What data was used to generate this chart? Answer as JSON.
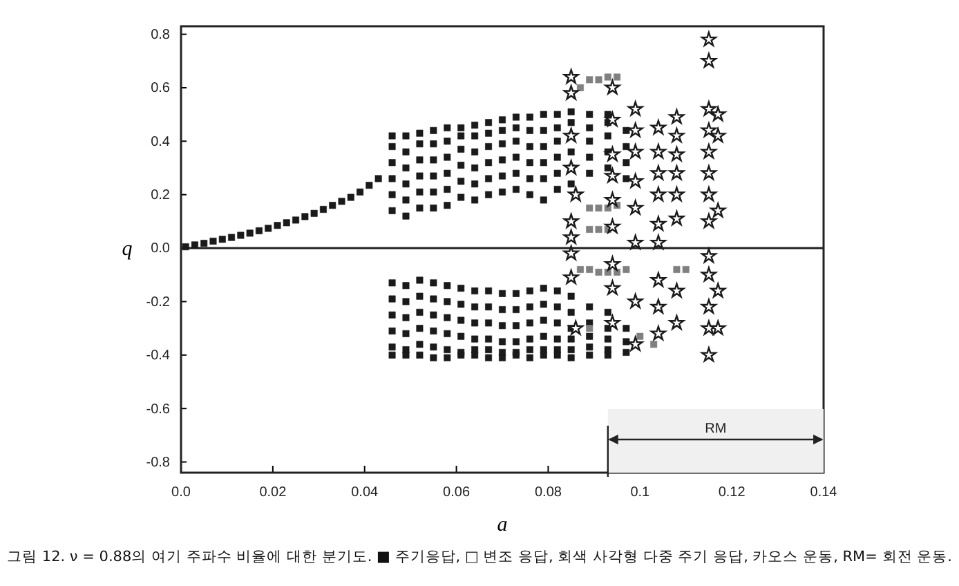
{
  "chart_data": {
    "type": "scatter",
    "xlabel": "a",
    "ylabel": "q",
    "xlim": [
      0,
      0.14
    ],
    "ylim": [
      -0.84,
      0.83
    ],
    "xticks": [
      {
        "value": 0,
        "label": "0.0"
      },
      0.02,
      0.04,
      0.06,
      0.08,
      0.1,
      0.12,
      0.14
    ],
    "yticks": [
      -0.8,
      -0.6,
      -0.4,
      -0.2,
      {
        "value": 0,
        "label": "0.0"
      },
      0.2,
      0.4,
      0.6,
      0.8
    ],
    "grid": false,
    "ref_lines": [
      {
        "axis": "y",
        "value": 0
      }
    ],
    "bands": [
      {
        "axis": "x",
        "from": 0.093,
        "to": 0.14,
        "label": "RM",
        "color": "#f0f0f0"
      }
    ],
    "annotations": [
      "그림 12. ν = 0.88의 여기 주파수 비율에 대한 분기도. ■ 주기응답, □ 변조 응답, 회색 사각형 다중 주기 응답, 카오스 운동, RM= 회전 운동."
    ],
    "series": [
      {
        "color": "#1a1a1a",
        "marker": "square",
        "x": [
          0.001,
          0.003,
          0.005,
          0.007,
          0.009,
          0.011,
          0.013,
          0.015,
          0.017,
          0.019,
          0.021,
          0.023,
          0.025,
          0.027,
          0.029,
          0.031,
          0.033,
          0.035,
          0.037,
          0.039,
          0.041,
          0.043,
          0.046,
          0.046,
          0.046,
          0.046,
          0.046,
          0.046,
          0.046,
          0.046,
          0.046,
          0.046,
          0.046,
          0.046,
          0.049,
          0.049,
          0.049,
          0.049,
          0.049,
          0.049,
          0.049,
          0.049,
          0.049,
          0.049,
          0.049,
          0.049,
          0.052,
          0.052,
          0.052,
          0.052,
          0.052,
          0.052,
          0.052,
          0.052,
          0.052,
          0.052,
          0.052,
          0.052,
          0.055,
          0.055,
          0.055,
          0.055,
          0.055,
          0.055,
          0.055,
          0.055,
          0.055,
          0.055,
          0.055,
          0.055,
          0.058,
          0.058,
          0.058,
          0.058,
          0.058,
          0.058,
          0.058,
          0.058,
          0.058,
          0.058,
          0.058,
          0.058,
          0.061,
          0.061,
          0.061,
          0.061,
          0.061,
          0.061,
          0.061,
          0.061,
          0.061,
          0.061,
          0.061,
          0.061,
          0.064,
          0.064,
          0.064,
          0.064,
          0.064,
          0.064,
          0.064,
          0.064,
          0.064,
          0.064,
          0.064,
          0.064,
          0.067,
          0.067,
          0.067,
          0.067,
          0.067,
          0.067,
          0.067,
          0.067,
          0.067,
          0.067,
          0.067,
          0.067,
          0.07,
          0.07,
          0.07,
          0.07,
          0.07,
          0.07,
          0.07,
          0.07,
          0.07,
          0.07,
          0.07,
          0.07,
          0.073,
          0.073,
          0.073,
          0.073,
          0.073,
          0.073,
          0.073,
          0.073,
          0.073,
          0.073,
          0.073,
          0.073,
          0.076,
          0.076,
          0.076,
          0.076,
          0.076,
          0.076,
          0.076,
          0.076,
          0.076,
          0.076,
          0.076,
          0.076,
          0.079,
          0.079,
          0.079,
          0.079,
          0.079,
          0.079,
          0.079,
          0.079,
          0.079,
          0.079,
          0.079,
          0.079,
          0.082,
          0.082,
          0.082,
          0.082,
          0.082,
          0.082,
          0.082,
          0.082,
          0.082,
          0.082,
          0.082,
          0.082,
          0.085,
          0.085,
          0.085,
          0.085,
          0.085,
          0.085,
          0.085,
          0.085,
          0.085,
          0.085,
          0.085,
          0.085,
          0.089,
          0.089,
          0.089,
          0.089,
          0.089,
          0.089,
          0.089,
          0.089,
          0.089,
          0.089,
          0.093,
          0.093,
          0.093,
          0.093,
          0.093,
          0.093,
          0.093,
          0.093,
          0.093,
          0.093,
          0.097,
          0.097,
          0.097,
          0.097,
          0.097,
          0.097,
          0.097
        ],
        "values": [
          0.005,
          0.012,
          0.018,
          0.026,
          0.033,
          0.04,
          0.048,
          0.056,
          0.065,
          0.074,
          0.085,
          0.095,
          0.105,
          0.118,
          0.13,
          0.145,
          0.16,
          0.175,
          0.19,
          0.21,
          0.235,
          0.26,
          0.14,
          0.2,
          0.26,
          0.32,
          0.38,
          0.42,
          -0.13,
          -0.19,
          -0.25,
          -0.31,
          -0.37,
          -0.4,
          0.12,
          0.18,
          0.24,
          0.3,
          0.36,
          0.42,
          -0.14,
          -0.2,
          -0.26,
          -0.32,
          -0.38,
          -0.4,
          0.15,
          0.21,
          0.27,
          0.33,
          0.39,
          0.43,
          -0.12,
          -0.18,
          -0.24,
          -0.3,
          -0.36,
          -0.4,
          0.15,
          0.21,
          0.27,
          0.33,
          0.39,
          0.44,
          -0.13,
          -0.19,
          -0.25,
          -0.31,
          -0.37,
          -0.41,
          0.16,
          0.22,
          0.28,
          0.34,
          0.4,
          0.45,
          -0.14,
          -0.2,
          -0.26,
          -0.32,
          -0.38,
          -0.41,
          0.19,
          0.25,
          0.31,
          0.37,
          0.42,
          0.45,
          -0.15,
          -0.21,
          -0.27,
          -0.33,
          -0.39,
          -0.4,
          0.18,
          0.24,
          0.3,
          0.36,
          0.42,
          0.46,
          -0.16,
          -0.22,
          -0.28,
          -0.34,
          -0.38,
          -0.4,
          0.2,
          0.26,
          0.32,
          0.38,
          0.43,
          0.47,
          -0.16,
          -0.22,
          -0.28,
          -0.34,
          -0.38,
          -0.41,
          0.21,
          0.27,
          0.33,
          0.39,
          0.44,
          0.48,
          -0.17,
          -0.23,
          -0.29,
          -0.35,
          -0.39,
          -0.41,
          0.22,
          0.28,
          0.34,
          0.4,
          0.45,
          0.49,
          -0.17,
          -0.23,
          -0.29,
          -0.35,
          -0.39,
          -0.4,
          0.2,
          0.26,
          0.32,
          0.38,
          0.44,
          0.49,
          -0.16,
          -0.22,
          -0.28,
          -0.34,
          -0.38,
          -0.41,
          0.18,
          0.26,
          0.32,
          0.38,
          0.44,
          0.5,
          -0.15,
          -0.21,
          -0.27,
          -0.33,
          -0.38,
          -0.4,
          0.22,
          0.28,
          0.34,
          0.4,
          0.45,
          0.5,
          -0.16,
          -0.22,
          -0.28,
          -0.34,
          -0.38,
          -0.4,
          0.24,
          0.3,
          0.36,
          0.42,
          0.47,
          0.51,
          -0.18,
          -0.24,
          -0.3,
          -0.34,
          -0.38,
          -0.41,
          0.28,
          0.34,
          0.4,
          0.45,
          0.5,
          -0.22,
          -0.28,
          -0.33,
          -0.37,
          -0.4,
          0.3,
          0.36,
          0.42,
          0.47,
          0.5,
          -0.24,
          -0.3,
          -0.34,
          -0.38,
          -0.4,
          0.26,
          0.32,
          0.38,
          0.44,
          -0.3,
          -0.35,
          -0.39
        ]
      },
      {
        "color": "#808080",
        "marker": "square",
        "x": [
          0.087,
          0.089,
          0.091,
          0.093,
          0.095,
          0.089,
          0.091,
          0.093,
          0.095,
          0.089,
          0.091,
          0.093,
          0.087,
          0.089,
          0.091,
          0.093,
          0.095,
          0.097,
          0.108,
          0.11,
          0.089,
          0.1,
          0.103
        ],
        "values": [
          0.6,
          0.63,
          0.63,
          0.64,
          0.64,
          0.15,
          0.15,
          0.15,
          0.16,
          0.07,
          0.07,
          0.07,
          -0.08,
          -0.08,
          -0.09,
          -0.09,
          -0.09,
          -0.08,
          -0.08,
          -0.08,
          -0.3,
          -0.33,
          -0.36
        ]
      },
      {
        "color": "#1a1a1a",
        "marker": "star",
        "x": [
          0.085,
          0.085,
          0.085,
          0.085,
          0.085,
          0.085,
          0.085,
          0.085,
          0.086,
          0.086,
          0.094,
          0.094,
          0.094,
          0.094,
          0.094,
          0.094,
          0.094,
          0.094,
          0.094,
          0.099,
          0.099,
          0.099,
          0.099,
          0.099,
          0.099,
          0.099,
          0.099,
          0.104,
          0.104,
          0.104,
          0.104,
          0.104,
          0.104,
          0.104,
          0.104,
          0.104,
          0.108,
          0.108,
          0.108,
          0.108,
          0.108,
          0.108,
          0.108,
          0.108,
          0.115,
          0.115,
          0.115,
          0.115,
          0.115,
          0.115,
          0.115,
          0.115,
          0.115,
          0.115,
          0.115,
          0.115,
          0.115,
          0.117,
          0.117,
          0.117,
          0.117,
          0.117
        ],
        "values": [
          0.64,
          0.58,
          0.42,
          0.3,
          0.1,
          0.04,
          -0.02,
          -0.11,
          0.2,
          -0.3,
          0.6,
          0.48,
          0.35,
          0.27,
          0.18,
          0.08,
          -0.06,
          -0.15,
          -0.28,
          0.52,
          0.44,
          0.36,
          0.25,
          0.15,
          0.02,
          -0.2,
          -0.36,
          0.45,
          0.36,
          0.28,
          0.2,
          0.09,
          0.02,
          -0.12,
          -0.22,
          -0.32,
          0.49,
          0.42,
          0.35,
          0.28,
          0.2,
          0.11,
          -0.16,
          -0.28,
          0.78,
          0.7,
          0.52,
          0.44,
          0.36,
          0.28,
          0.2,
          0.1,
          -0.03,
          -0.1,
          -0.22,
          -0.3,
          -0.4,
          0.5,
          0.42,
          0.14,
          -0.16,
          -0.3
        ]
      }
    ]
  }
}
